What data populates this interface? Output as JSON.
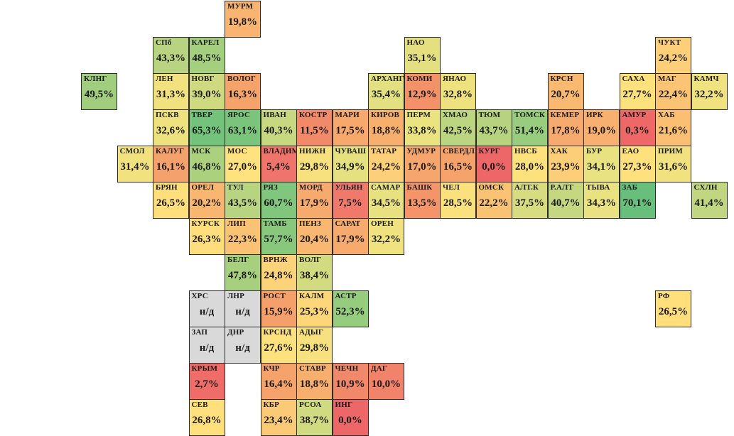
{
  "regions": [
    {
      "code": "МУРМ",
      "value": "19,8%",
      "level": 19.8
    },
    {
      "code": "СПб",
      "value": "43,3%",
      "level": 43.3
    },
    {
      "code": "КАРЕЛ",
      "value": "48,5%",
      "level": 48.5
    },
    {
      "code": "НАО",
      "value": "35,1%",
      "level": 35.1
    },
    {
      "code": "ЧУКТ",
      "value": "24,2%",
      "level": 24.2
    },
    {
      "code": "КЛНГ",
      "value": "49,5%",
      "level": 49.5
    },
    {
      "code": "ЛЕН",
      "value": "31,3%",
      "level": 31.3
    },
    {
      "code": "НОВГ",
      "value": "39,0%",
      "level": 39.0
    },
    {
      "code": "ВОЛОГ",
      "value": "16,3%",
      "level": 16.3
    },
    {
      "code": "АРХАНГ",
      "value": "35,4%",
      "level": 35.4
    },
    {
      "code": "КОМИ",
      "value": "12,9%",
      "level": 12.9
    },
    {
      "code": "ЯНАО",
      "value": "32,8%",
      "level": 32.8
    },
    {
      "code": "КРСН",
      "value": "20,7%",
      "level": 20.7
    },
    {
      "code": "САХА",
      "value": "27,7%",
      "level": 27.7
    },
    {
      "code": "МАГ",
      "value": "22,4%",
      "level": 22.4
    },
    {
      "code": "КАМЧ",
      "value": "32,2%",
      "level": 32.2
    },
    {
      "code": "ПСКВ",
      "value": "32,6%",
      "level": 32.6
    },
    {
      "code": "ТВЕР",
      "value": "65,3%",
      "level": 65.3
    },
    {
      "code": "ЯРОС",
      "value": "63,1%",
      "level": 63.1
    },
    {
      "code": "ИВАН",
      "value": "40,3%",
      "level": 40.3
    },
    {
      "code": "КОСТР",
      "value": "11,5%",
      "level": 11.5
    },
    {
      "code": "МАРИ",
      "value": "17,5%",
      "level": 17.5
    },
    {
      "code": "КИРОВ",
      "value": "18,8%",
      "level": 18.8
    },
    {
      "code": "ПЕРМ",
      "value": "33,8%",
      "level": 33.8
    },
    {
      "code": "ХМАО",
      "value": "42,5%",
      "level": 42.5
    },
    {
      "code": "ТЮМ",
      "value": "43,7%",
      "level": 43.7
    },
    {
      "code": "ТОМСК",
      "value": "51,4%",
      "level": 51.4
    },
    {
      "code": "КЕМЕР",
      "value": "17,8%",
      "level": 17.8
    },
    {
      "code": "ИРК",
      "value": "19,0%",
      "level": 19.0
    },
    {
      "code": "АМУР",
      "value": "0,3%",
      "level": 0.3
    },
    {
      "code": "ХАБ",
      "value": "21,6%",
      "level": 21.6
    },
    {
      "code": "СМОЛ",
      "value": "31,4%",
      "level": 31.4
    },
    {
      "code": "КАЛУГ",
      "value": "16,1%",
      "level": 16.1
    },
    {
      "code": "МСК",
      "value": "46,8%",
      "level": 46.8
    },
    {
      "code": "МОС",
      "value": "27,0%",
      "level": 27.0
    },
    {
      "code": "ВЛАДИМ",
      "value": "5,4%",
      "level": 5.4
    },
    {
      "code": "НИЖН",
      "value": "29,8%",
      "level": 29.8
    },
    {
      "code": "ЧУВАШ",
      "value": "34,9%",
      "level": 34.9
    },
    {
      "code": "ТАТАР",
      "value": "24,2%",
      "level": 24.2
    },
    {
      "code": "УДМУР",
      "value": "17,0%",
      "level": 17.0
    },
    {
      "code": "СВЕРДЛ",
      "value": "16,5%",
      "level": 16.5
    },
    {
      "code": "КУРГ",
      "value": "0,0%",
      "level": 0.0
    },
    {
      "code": "НВСБ",
      "value": "28,0%",
      "level": 28.0
    },
    {
      "code": "ХАК",
      "value": "23,9%",
      "level": 23.9
    },
    {
      "code": "БУР",
      "value": "34,1%",
      "level": 34.1
    },
    {
      "code": "ЕАО",
      "value": "27,3%",
      "level": 27.3
    },
    {
      "code": "ПРИМ",
      "value": "31,6%",
      "level": 31.6
    },
    {
      "code": "БРЯН",
      "value": "26,5%",
      "level": 26.5
    },
    {
      "code": "ОРЕЛ",
      "value": "20,2%",
      "level": 20.2
    },
    {
      "code": "ТУЛ",
      "value": "43,5%",
      "level": 43.5
    },
    {
      "code": "РЯЗ",
      "value": "60,7%",
      "level": 60.7
    },
    {
      "code": "МОРД",
      "value": "17,9%",
      "level": 17.9
    },
    {
      "code": "УЛЬЯН",
      "value": "7,5%",
      "level": 7.5
    },
    {
      "code": "САМАР",
      "value": "34,5%",
      "level": 34.5
    },
    {
      "code": "БАШК",
      "value": "13,5%",
      "level": 13.5
    },
    {
      "code": "ЧЕЛ",
      "value": "28,5%",
      "level": 28.5
    },
    {
      "code": "ОМСК",
      "value": "22,2%",
      "level": 22.2
    },
    {
      "code": "АЛТ.К",
      "value": "37,5%",
      "level": 37.5
    },
    {
      "code": "Р.АЛТ",
      "value": "40,7%",
      "level": 40.7
    },
    {
      "code": "ТЫВА",
      "value": "34,3%",
      "level": 34.3
    },
    {
      "code": "ЗАБ",
      "value": "70,1%",
      "level": 70.1
    },
    {
      "code": "СХЛН",
      "value": "41,4%",
      "level": 41.4
    },
    {
      "code": "КУРСК",
      "value": "26,3%",
      "level": 26.3
    },
    {
      "code": "ЛИП",
      "value": "22,3%",
      "level": 22.3
    },
    {
      "code": "ТАМБ",
      "value": "57,7%",
      "level": 57.7
    },
    {
      "code": "ПЕНЗ",
      "value": "20,4%",
      "level": 20.4
    },
    {
      "code": "САРАТ",
      "value": "17,9%",
      "level": 17.9
    },
    {
      "code": "ОРЕН",
      "value": "32,2%",
      "level": 32.2
    },
    {
      "code": "БЕЛГ",
      "value": "47,8%",
      "level": 47.8
    },
    {
      "code": "ВРНЖ",
      "value": "24,8%",
      "level": 24.8
    },
    {
      "code": "ВОЛГ",
      "value": "38,4%",
      "level": 38.4
    },
    {
      "code": "ХРС",
      "value": "н/д",
      "level": null
    },
    {
      "code": "ЛНР",
      "value": "н/д",
      "level": null
    },
    {
      "code": "РОСТ",
      "value": "15,9%",
      "level": 15.9
    },
    {
      "code": "КАЛМ",
      "value": "25,3%",
      "level": 25.3
    },
    {
      "code": "АСТР",
      "value": "52,3%",
      "level": 52.3
    },
    {
      "code": "РФ",
      "value": "26,5%",
      "level": 26.5
    },
    {
      "code": "ЗАП",
      "value": "н/д",
      "level": null
    },
    {
      "code": "ДНР",
      "value": "н/д",
      "level": null
    },
    {
      "code": "КРСНД",
      "value": "27,6%",
      "level": 27.6
    },
    {
      "code": "АДЫГ",
      "value": "29,8%",
      "level": 29.8
    },
    {
      "code": "КРЫМ",
      "value": "2,7%",
      "level": 2.7
    },
    {
      "code": "КЧР",
      "value": "16,4%",
      "level": 16.4
    },
    {
      "code": "СТАВР",
      "value": "18,8%",
      "level": 18.8
    },
    {
      "code": "ЧЕЧН",
      "value": "10,9%",
      "level": 10.9
    },
    {
      "code": "ДАГ",
      "value": "10,0%",
      "level": 10.0
    },
    {
      "code": "СЕВ",
      "value": "26,8%",
      "level": 26.8
    },
    {
      "code": "КБР",
      "value": "23,4%",
      "level": 23.4
    },
    {
      "code": "РСОА",
      "value": "38,7%",
      "level": 38.7
    },
    {
      "code": "ИНГ",
      "value": "0,0%",
      "level": 0.0
    }
  ]
}
